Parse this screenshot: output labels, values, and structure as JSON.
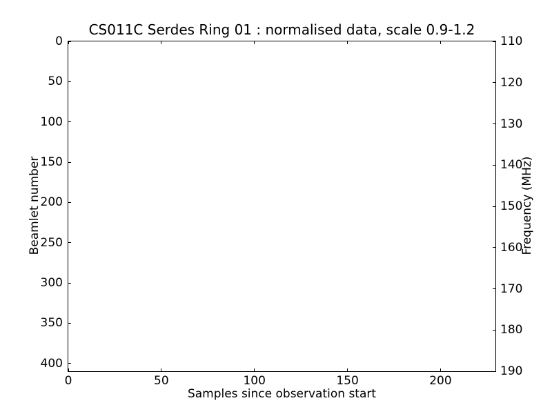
{
  "figure": {
    "background_color": "#ffffff",
    "foreground_color": "#000000"
  },
  "chart_data": {
    "type": "heatmap",
    "title": "CS011C Serdes Ring 01 : normalised data, scale 0.9-1.2",
    "xlabel": "Samples since observation start",
    "ylabel_left": "Beamlet number",
    "ylabel_right": "Frequency (MHz)",
    "x_ticks": [
      0,
      50,
      100,
      150,
      200
    ],
    "xlim": [
      0,
      229.5
    ],
    "y_left_ticks": [
      0,
      50,
      100,
      150,
      200,
      250,
      300,
      350,
      400
    ],
    "ylim_left": [
      0,
      409.6
    ],
    "y_left_inverted": true,
    "y_right_ticks": [
      110,
      120,
      130,
      140,
      150,
      160,
      170,
      180,
      190
    ],
    "ylim_right": [
      110,
      190
    ],
    "grid": false,
    "legend": null,
    "values": []
  }
}
